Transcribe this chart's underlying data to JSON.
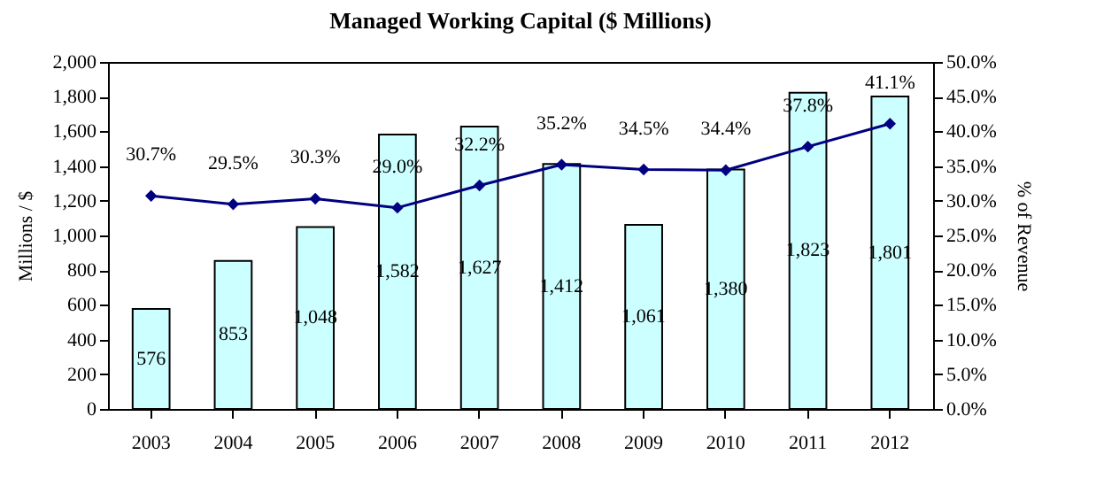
{
  "chart_data": {
    "type": "bar",
    "title": "Managed Working Capital ($ Millions)",
    "ylabel": "Millions / $",
    "y2label": "% of Revenue",
    "categories": [
      "2003",
      "2004",
      "2005",
      "2006",
      "2007",
      "2008",
      "2009",
      "2010",
      "2011",
      "2012"
    ],
    "series": [
      {
        "color": "#ccffff",
        "values": [
          576,
          853,
          1048,
          1582,
          1627,
          1412,
          1061,
          1380,
          1823,
          1801
        ],
        "value_labels": [
          "576",
          "853",
          "1,048",
          "1,582",
          "1,627",
          "1,412",
          "1,061",
          "1,380",
          "1,823",
          "1,801"
        ]
      },
      {
        "type": "line",
        "axis": "y2",
        "color": "#000080",
        "values": [
          30.7,
          29.5,
          30.3,
          29.0,
          32.2,
          35.2,
          34.5,
          34.4,
          37.8,
          41.1
        ],
        "value_labels": [
          "30.7%",
          "29.5%",
          "30.3%",
          "29.0%",
          "32.2%",
          "35.2%",
          "34.5%",
          "34.4%",
          "37.8%",
          "41.1%"
        ]
      }
    ],
    "ylim": [
      0,
      2000
    ],
    "yticks": [
      0,
      200,
      400,
      600,
      800,
      {
        "value": 1000,
        "label": "1,000"
      },
      {
        "value": 1200,
        "label": "1,200"
      },
      {
        "value": 1400,
        "label": "1,400"
      },
      {
        "value": 1600,
        "label": "1,600"
      },
      {
        "value": 1800,
        "label": "1,800"
      },
      {
        "value": 2000,
        "label": "2,000"
      }
    ],
    "y2lim": [
      0,
      50
    ],
    "y2ticks": [
      {
        "value": 0,
        "label": "0.0%"
      },
      {
        "value": 5,
        "label": "5.0%"
      },
      {
        "value": 10,
        "label": "10.0%"
      },
      {
        "value": 15,
        "label": "15.0%"
      },
      {
        "value": 20,
        "label": "20.0%"
      },
      {
        "value": 25,
        "label": "25.0%"
      },
      {
        "value": 30,
        "label": "30.0%"
      },
      {
        "value": 35,
        "label": "35.0%"
      },
      {
        "value": 40,
        "label": "40.0%"
      },
      {
        "value": 45,
        "label": "45.0%"
      },
      {
        "value": 50,
        "label": "50.0%"
      }
    ],
    "marker": "diamond",
    "line_style": "solid",
    "grid": false
  }
}
